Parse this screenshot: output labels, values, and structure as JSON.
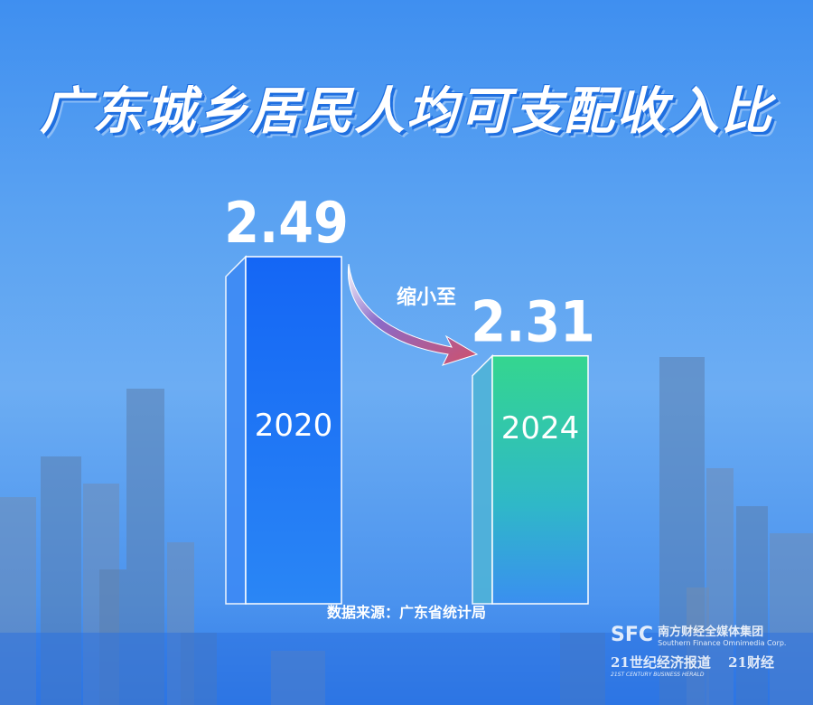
{
  "chart_data": {
    "type": "bar",
    "title": "广东城乡居民人均可支配收入比",
    "categories": [
      "2020",
      "2024"
    ],
    "values": [
      2.49,
      2.31
    ],
    "value_labels": [
      "2.49",
      "2.31"
    ],
    "colors": [
      "#1a6ff5",
      "#34d68f"
    ],
    "annotation": "缩小至",
    "source": "数据来源：广东省统计局",
    "ylim": [
      1.86,
      2.5
    ],
    "grid": false
  },
  "logos": {
    "sfc": "SFC",
    "sfc_cn": "南方财经全媒体集团",
    "sfc_en": "Southern Finance Omnimedia Corp.",
    "herald_cn": "21世纪经济报道",
    "herald_en": "21ST CENTURY BUSINESS HERALD",
    "caijing": "21财经"
  }
}
